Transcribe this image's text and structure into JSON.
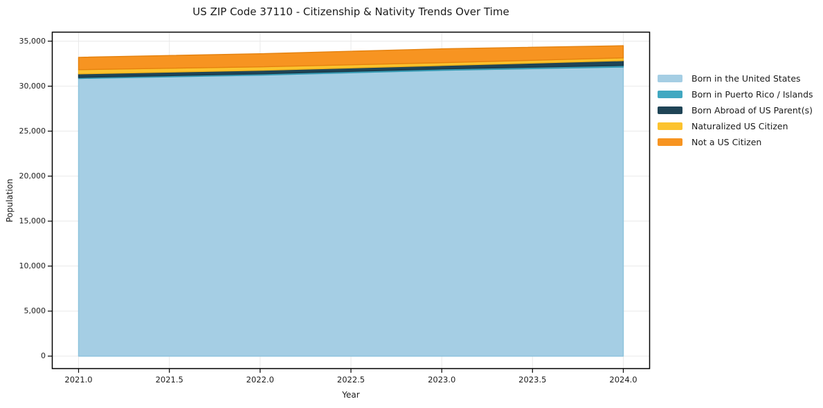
{
  "chart_data": {
    "type": "area",
    "stacked": true,
    "title": "US ZIP Code 37110 - Citizenship & Nativity Trends Over Time",
    "xlabel": "Year",
    "ylabel": "Population",
    "x": [
      2021,
      2022,
      2023,
      2024
    ],
    "series": [
      {
        "name": "Born in the United States",
        "color": "#a5cee4",
        "edge_color": "#8ec3dd",
        "values": [
          30850,
          31220,
          31760,
          32120
        ]
      },
      {
        "name": "Born in Puerto Rico / Islands",
        "color": "#41a8c1",
        "edge_color": "#3397b0",
        "values": [
          120,
          150,
          150,
          175
        ]
      },
      {
        "name": "Born Abroad of US Parent(s)",
        "color": "#1f4456",
        "edge_color": "#183848",
        "values": [
          400,
          390,
          385,
          540
        ]
      },
      {
        "name": "Naturalized US Citizen",
        "color": "#fcc32e",
        "edge_color": "#f0b31c",
        "values": [
          460,
          385,
          310,
          310
        ]
      },
      {
        "name": "Not a US Citizen",
        "color": "#f79421",
        "edge_color": "#e5820f",
        "values": [
          1370,
          1460,
          1545,
          1345
        ]
      }
    ],
    "xticks": [
      2021.0,
      2021.5,
      2022.0,
      2022.5,
      2023.0,
      2023.5,
      2024.0
    ],
    "xtick_labels": [
      "2021.0",
      "2021.5",
      "2022.0",
      "2022.5",
      "2023.0",
      "2023.5",
      "2024.0"
    ],
    "yticks": [
      0,
      5000,
      10000,
      15000,
      20000,
      25000,
      30000,
      35000
    ],
    "ytick_labels": [
      "0",
      "5,000",
      "10,000",
      "15,000",
      "20,000",
      "25,000",
      "30,000",
      "35,000"
    ],
    "xlim": [
      2020.855,
      2024.145
    ],
    "ylim": [
      -1385,
      36000
    ],
    "grid": true,
    "grid_color": "#e9e9e9",
    "spine_color": "#000000",
    "legend_position": "right",
    "background_color": "#ffffff"
  }
}
